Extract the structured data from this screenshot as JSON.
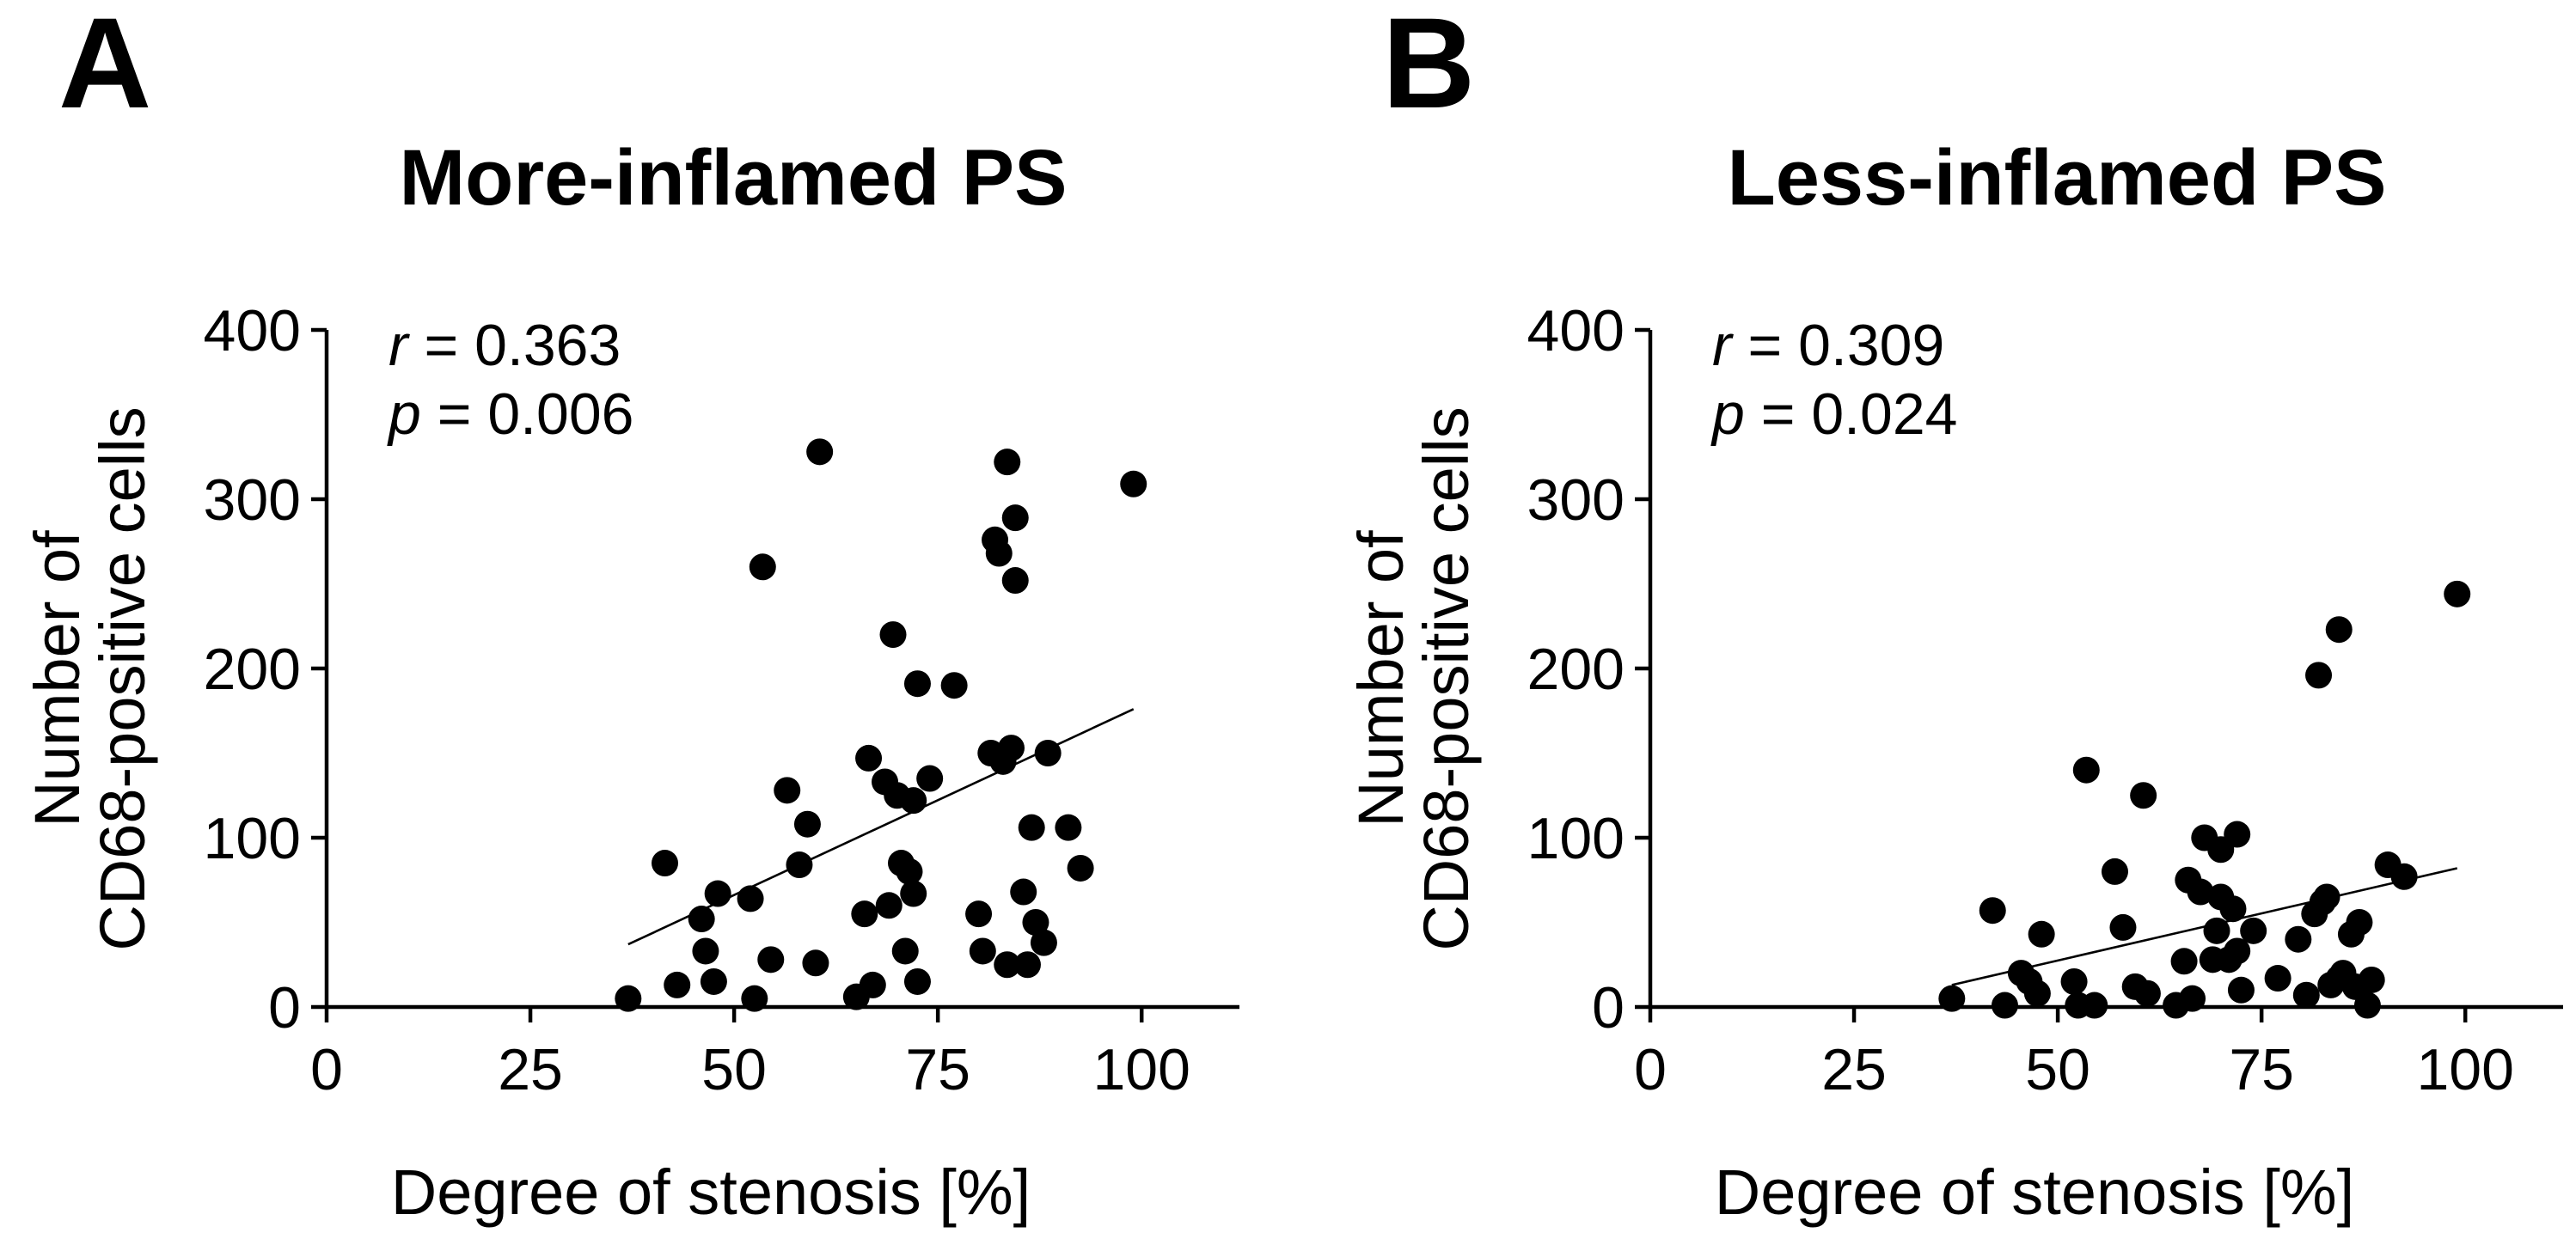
{
  "panels": [
    {
      "letter": "A",
      "title": "More-inflamed PS",
      "stats": {
        "r_symbol": "r",
        "r_text": " = 0.363",
        "p_symbol": "p",
        "p_text": " = 0.006"
      }
    },
    {
      "letter": "B",
      "title": "Less-inflamed PS",
      "stats": {
        "r_symbol": "r",
        "r_text": " = 0.309",
        "p_symbol": "p",
        "p_text": " = 0.024"
      }
    }
  ],
  "chart_data": [
    {
      "type": "scatter",
      "title": "More-inflamed PS",
      "xlabel": "Degree of stenosis [%]",
      "ylabel_lines": [
        "Number of",
        "CD68-positive cells"
      ],
      "xlim": [
        0,
        112
      ],
      "ylim": [
        0,
        400
      ],
      "xticks": [
        0,
        25,
        50,
        75,
        100
      ],
      "yticks": [
        0,
        100,
        200,
        300,
        400
      ],
      "points": [
        [
          37,
          5
        ],
        [
          41.5,
          85
        ],
        [
          43,
          13
        ],
        [
          46,
          52
        ],
        [
          46.5,
          33
        ],
        [
          47.5,
          15
        ],
        [
          48,
          67
        ],
        [
          52,
          64
        ],
        [
          52.5,
          5
        ],
        [
          53.5,
          260
        ],
        [
          54.5,
          28
        ],
        [
          56.5,
          128
        ],
        [
          58,
          84
        ],
        [
          59,
          108
        ],
        [
          60,
          26
        ],
        [
          60.5,
          328
        ],
        [
          65,
          6
        ],
        [
          66,
          55
        ],
        [
          66.5,
          147
        ],
        [
          67,
          13
        ],
        [
          68.5,
          133
        ],
        [
          69,
          60
        ],
        [
          69.5,
          220
        ],
        [
          70,
          125
        ],
        [
          70.5,
          85
        ],
        [
          71,
          33
        ],
        [
          71.5,
          80
        ],
        [
          72,
          122
        ],
        [
          72,
          67
        ],
        [
          72.5,
          191
        ],
        [
          72.5,
          15
        ],
        [
          74,
          135
        ],
        [
          77,
          190
        ],
        [
          80,
          55
        ],
        [
          80.5,
          33
        ],
        [
          81.5,
          150
        ],
        [
          82,
          276
        ],
        [
          82.5,
          268
        ],
        [
          83,
          145
        ],
        [
          83.5,
          25
        ],
        [
          83.5,
          322
        ],
        [
          84,
          153
        ],
        [
          84.5,
          252
        ],
        [
          84.5,
          289
        ],
        [
          85.5,
          68
        ],
        [
          86,
          25
        ],
        [
          86.5,
          106
        ],
        [
          87,
          50
        ],
        [
          88,
          38
        ],
        [
          88.5,
          150
        ],
        [
          91,
          106
        ],
        [
          92.5,
          82
        ],
        [
          99,
          309
        ]
      ],
      "fit_line": {
        "x": [
          37,
          99
        ],
        "y": [
          37,
          176
        ]
      }
    },
    {
      "type": "scatter",
      "title": "Less-inflamed PS",
      "xlabel": "Degree of stenosis [%]",
      "ylabel_lines": [
        "Number of",
        "CD68-positive cells"
      ],
      "xlim": [
        0,
        112
      ],
      "ylim": [
        0,
        400
      ],
      "xticks": [
        0,
        25,
        50,
        75,
        100
      ],
      "yticks": [
        0,
        100,
        200,
        300,
        400
      ],
      "points": [
        [
          37,
          5
        ],
        [
          42,
          57
        ],
        [
          43.5,
          1
        ],
        [
          45.5,
          20
        ],
        [
          46.5,
          15
        ],
        [
          47.5,
          8
        ],
        [
          48,
          43
        ],
        [
          52,
          15
        ],
        [
          52.5,
          1
        ],
        [
          53.5,
          140
        ],
        [
          54.5,
          1
        ],
        [
          57,
          80
        ],
        [
          58,
          47
        ],
        [
          59.5,
          12
        ],
        [
          60.5,
          125
        ],
        [
          61,
          8
        ],
        [
          64.5,
          1
        ],
        [
          65.5,
          27
        ],
        [
          66,
          75
        ],
        [
          66.5,
          5
        ],
        [
          67.5,
          68
        ],
        [
          68,
          100
        ],
        [
          69,
          28
        ],
        [
          69.5,
          45
        ],
        [
          70,
          93
        ],
        [
          70,
          65
        ],
        [
          71,
          28
        ],
        [
          71.5,
          58
        ],
        [
          72,
          102
        ],
        [
          72,
          33
        ],
        [
          72.5,
          10
        ],
        [
          74,
          45
        ],
        [
          77,
          17
        ],
        [
          79.5,
          40
        ],
        [
          80.5,
          7
        ],
        [
          81.5,
          55
        ],
        [
          82,
          196
        ],
        [
          82.5,
          62
        ],
        [
          83,
          65
        ],
        [
          83.5,
          13
        ],
        [
          84.5,
          223
        ],
        [
          84.5,
          17
        ],
        [
          85,
          20
        ],
        [
          86,
          43
        ],
        [
          86.5,
          12
        ],
        [
          87,
          50
        ],
        [
          88,
          1
        ],
        [
          88.5,
          16
        ],
        [
          90.5,
          84
        ],
        [
          92.5,
          77
        ],
        [
          99,
          244
        ]
      ],
      "fit_line": {
        "x": [
          37,
          99
        ],
        "y": [
          13,
          82
        ]
      }
    }
  ]
}
